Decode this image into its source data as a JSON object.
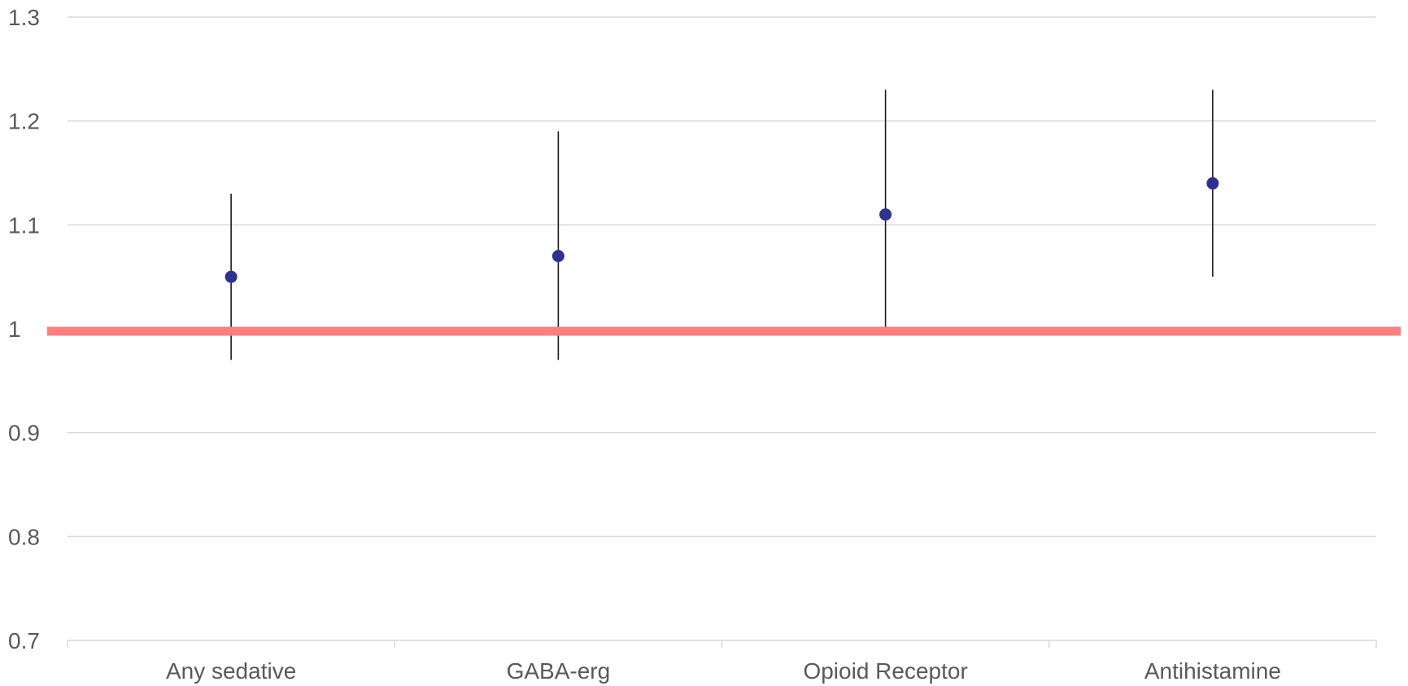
{
  "chart_data": {
    "type": "scatter",
    "title": "",
    "xlabel": "",
    "ylabel": "",
    "categories": [
      "Any sedative",
      "GABA-erg",
      "Opioid Receptor",
      "Antihistamine"
    ],
    "series": [
      {
        "estimates": [
          1.05,
          1.07,
          1.11,
          1.14
        ],
        "lower": [
          0.97,
          0.97,
          1.0,
          1.05
        ],
        "upper": [
          1.13,
          1.19,
          1.23,
          1.23
        ]
      }
    ],
    "reference_line": {
      "value": 1.0
    },
    "ylim": [
      0.7,
      1.3
    ],
    "yticks": [
      "0.7",
      "0.8",
      "0.9",
      "1",
      "1.1",
      "1.2",
      "1.3"
    ],
    "grid": true,
    "legend": "none",
    "colors": {
      "marker": "#2E3192",
      "error_bar": "#1a1a1a",
      "reference_line": "#FF7F7F",
      "grid": "#D9D9D9",
      "axis": "#D9D9D9",
      "text": "#595959"
    }
  }
}
